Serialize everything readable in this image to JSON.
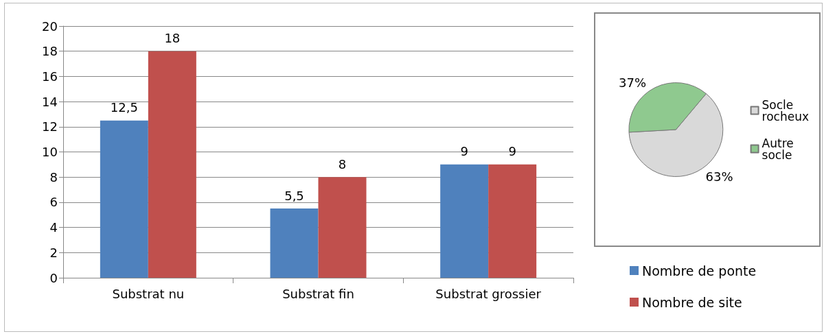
{
  "chart_data": [
    {
      "type": "bar",
      "categories": [
        "Substrat nu",
        "Substrat fin",
        "Substrat grossier"
      ],
      "series": [
        {
          "name": "Nombre de ponte",
          "color": "#4f81bd",
          "values": [
            12.5,
            5.5,
            9
          ],
          "value_labels": [
            "12,5",
            "5,5",
            "9"
          ]
        },
        {
          "name": "Nombre de site",
          "color": "#c0504d",
          "values": [
            18,
            8,
            9
          ],
          "value_labels": [
            "18",
            "8",
            "9"
          ]
        }
      ],
      "ylim": [
        0,
        20
      ],
      "yticks": [
        0,
        2,
        4,
        6,
        8,
        10,
        12,
        14,
        16,
        18,
        20
      ],
      "grid": "y",
      "legend": "bottom right"
    },
    {
      "type": "pie",
      "categories": [
        "Socle rocheux",
        "Autre socle"
      ],
      "values": [
        63,
        37
      ],
      "colors": [
        "#d9d9d9",
        "#8fc98f"
      ],
      "value_labels": [
        "63%",
        "37%"
      ],
      "legend": "right"
    }
  ]
}
